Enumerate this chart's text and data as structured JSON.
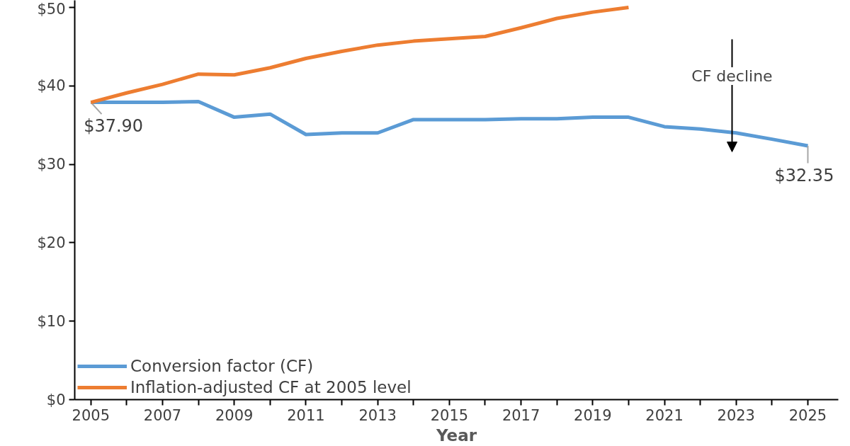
{
  "chart_data": {
    "type": "line",
    "xlabel": "Year",
    "x": [
      2005,
      2006,
      2007,
      2008,
      2009,
      2010,
      2011,
      2012,
      2013,
      2014,
      2015,
      2016,
      2017,
      2018,
      2019,
      2020,
      2021,
      2022,
      2023,
      2024,
      2025
    ],
    "series": [
      {
        "name": "Conversion factor (CF)",
        "color": "#5b9bd5",
        "values": [
          37.9,
          37.9,
          37.9,
          38.0,
          36.0,
          36.4,
          33.8,
          34.0,
          34.0,
          35.7,
          35.7,
          35.7,
          35.8,
          35.8,
          36.0,
          36.0,
          34.8,
          34.5,
          34.0,
          33.2,
          32.35
        ],
        "value_labels": [
          "$37.90",
          null,
          null,
          null,
          null,
          null,
          null,
          null,
          null,
          null,
          null,
          null,
          null,
          null,
          null,
          null,
          null,
          null,
          null,
          null,
          "$32.35"
        ]
      },
      {
        "name": "Inflation-adjusted CF at 2005 level",
        "color": "#ed7d31",
        "values": [
          37.9,
          39.1,
          40.2,
          41.5,
          41.4,
          42.3,
          43.5,
          44.4,
          45.2,
          45.7,
          46.0,
          46.3,
          47.4,
          48.6,
          49.4,
          50.0,
          null,
          null,
          null,
          null,
          null
        ]
      }
    ],
    "xlim": [
      2004.55,
      2025.85
    ],
    "ylim": [
      0,
      50.9
    ],
    "xticks": [
      {
        "value": 2005,
        "label": "2005"
      },
      {
        "value": 2006,
        "label": null
      },
      {
        "value": 2007,
        "label": "2007"
      },
      {
        "value": 2008,
        "label": null
      },
      {
        "value": 2009,
        "label": "2009"
      },
      {
        "value": 2010,
        "label": null
      },
      {
        "value": 2011,
        "label": "2011"
      },
      {
        "value": 2012,
        "label": null
      },
      {
        "value": 2013,
        "label": "2013"
      },
      {
        "value": 2014,
        "label": null
      },
      {
        "value": 2015,
        "label": "2015"
      },
      {
        "value": 2016,
        "label": null
      },
      {
        "value": 2017,
        "label": "2017"
      },
      {
        "value": 2018,
        "label": null
      },
      {
        "value": 2019,
        "label": "2019"
      },
      {
        "value": 2020,
        "label": null
      },
      {
        "value": 2021,
        "label": "2021"
      },
      {
        "value": 2022,
        "label": null
      },
      {
        "value": 2023,
        "label": "2023"
      },
      {
        "value": 2024,
        "label": null
      },
      {
        "value": 2025,
        "label": "2025"
      }
    ],
    "yticks": [
      {
        "value": 0,
        "label": "$0"
      },
      {
        "value": 10,
        "label": "$10"
      },
      {
        "value": 20,
        "label": "$20"
      },
      {
        "value": 30,
        "label": "$30"
      },
      {
        "value": 40,
        "label": "$40"
      },
      {
        "value": 50,
        "label": "$50"
      }
    ],
    "annotations": [
      "CF decline"
    ],
    "legend": "bottom left",
    "grid": false,
    "marker": "none",
    "line_style": "solid"
  }
}
